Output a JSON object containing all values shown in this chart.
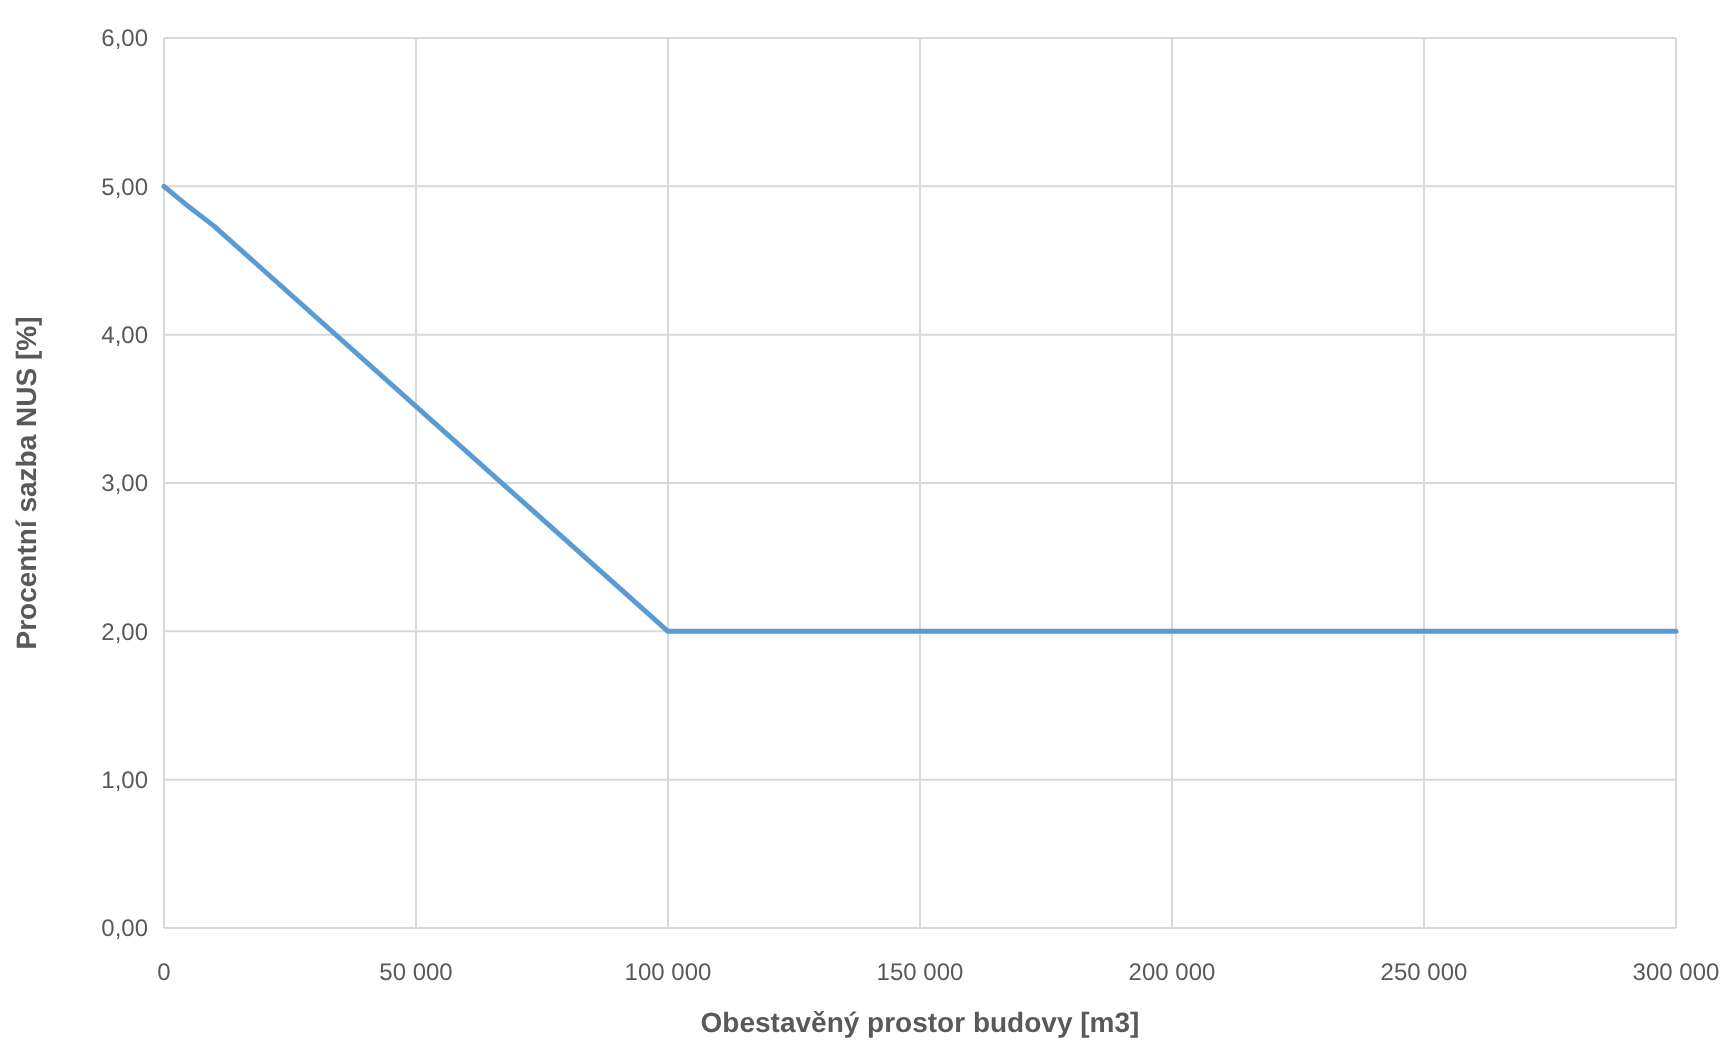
{
  "chart_data": {
    "type": "line",
    "xlabel": "Obestavěný prostor budovy [m3]",
    "ylabel": "Procentní sazba NUS [%]",
    "x": [
      0,
      5000,
      10000,
      100000,
      300000
    ],
    "series": [
      {
        "color": "#5b9bd5",
        "values": [
          5,
          4.86,
          4.73,
          2,
          2
        ]
      }
    ],
    "xlim": [
      0,
      300000
    ],
    "ylim": [
      0,
      6
    ],
    "xticks": [
      0,
      {
        "value": 50000,
        "label": "50 000"
      },
      {
        "value": 100000,
        "label": "100 000"
      },
      {
        "value": 150000,
        "label": "150 000"
      },
      {
        "value": 200000,
        "label": "200 000"
      },
      {
        "value": 250000,
        "label": "250 000"
      },
      {
        "value": 300000,
        "label": "300 000"
      }
    ],
    "yticks": [
      {
        "value": 0,
        "label": "0,00"
      },
      {
        "value": 1,
        "label": "1,00"
      },
      {
        "value": 2,
        "label": "2,00"
      },
      {
        "value": 3,
        "label": "3,00"
      },
      {
        "value": 4,
        "label": "4,00"
      },
      {
        "value": 5,
        "label": "5,00"
      },
      {
        "value": 6,
        "label": "6,00"
      }
    ],
    "grid": true,
    "marker": "none",
    "line_style": "solid"
  }
}
